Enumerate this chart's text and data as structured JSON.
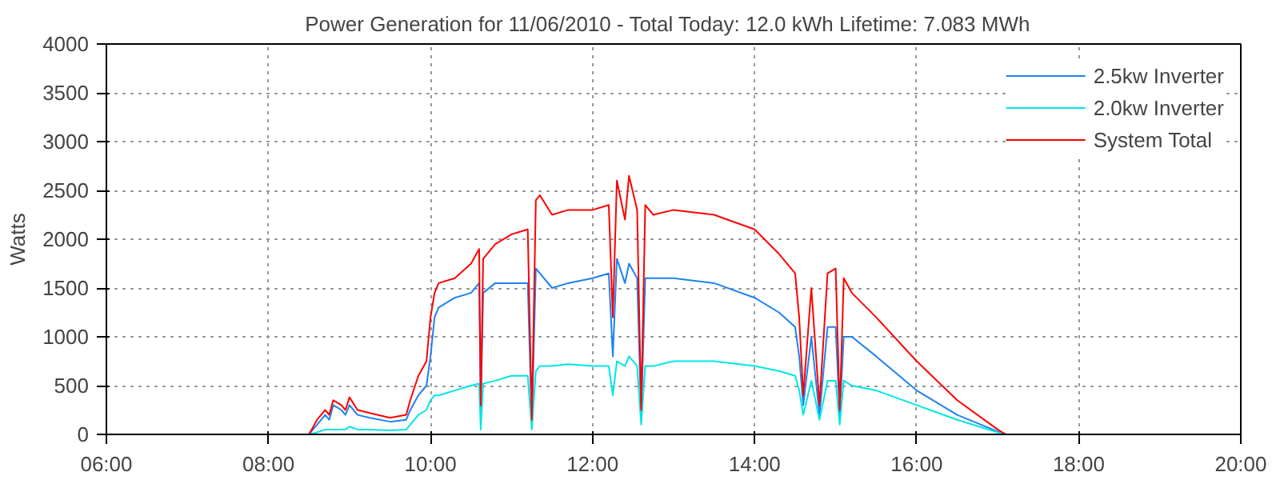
{
  "chart_data": {
    "type": "line",
    "title": "Power Generation for 11/06/2010 - Total Today: 12.0 kWh   Lifetime: 7.083 MWh",
    "ylabel": "Watts",
    "x": [
      8.5,
      8.6,
      8.7,
      8.75,
      8.8,
      8.9,
      8.95,
      9.0,
      9.1,
      9.25,
      9.5,
      9.7,
      9.75,
      9.85,
      9.95,
      10.0,
      10.05,
      10.1,
      10.3,
      10.5,
      10.6,
      10.62,
      10.65,
      10.8,
      11.0,
      11.2,
      11.25,
      11.3,
      11.35,
      11.5,
      11.7,
      12.0,
      12.2,
      12.25,
      12.3,
      12.4,
      12.45,
      12.55,
      12.6,
      12.65,
      12.75,
      13.0,
      13.5,
      14.0,
      14.3,
      14.5,
      14.55,
      14.6,
      14.7,
      14.8,
      14.9,
      15.0,
      15.05,
      15.1,
      15.2,
      15.5,
      16.0,
      16.5,
      17.0,
      17.1,
      17.3
    ],
    "series": [
      {
        "name": "2.5kw Inverter",
        "color": "#1e82f0",
        "values": [
          0,
          100,
          200,
          150,
          300,
          250,
          200,
          300,
          200,
          170,
          130,
          150,
          250,
          400,
          500,
          800,
          1200,
          1300,
          1400,
          1450,
          1550,
          250,
          1450,
          1550,
          1550,
          1550,
          100,
          1700,
          1650,
          1500,
          1550,
          1600,
          1650,
          800,
          1800,
          1550,
          1750,
          1600,
          200,
          1600,
          1600,
          1600,
          1550,
          1400,
          1250,
          1100,
          800,
          300,
          1000,
          200,
          1100,
          1100,
          200,
          1000,
          1000,
          800,
          450,
          200,
          30,
          0,
          0
        ]
      },
      {
        "name": "2.0kw Inverter",
        "color": "#00e5e5",
        "values": [
          0,
          20,
          50,
          50,
          50,
          50,
          50,
          80,
          50,
          50,
          40,
          50,
          100,
          200,
          250,
          350,
          400,
          400,
          450,
          500,
          520,
          50,
          520,
          550,
          600,
          600,
          50,
          650,
          700,
          700,
          720,
          700,
          700,
          400,
          750,
          700,
          800,
          700,
          100,
          700,
          700,
          750,
          750,
          700,
          650,
          600,
          450,
          200,
          550,
          150,
          550,
          550,
          100,
          550,
          500,
          450,
          300,
          150,
          20,
          0,
          0
        ]
      },
      {
        "name": "System Total",
        "color": "#ff0000",
        "values": [
          0,
          150,
          250,
          200,
          350,
          300,
          250,
          380,
          250,
          220,
          170,
          200,
          350,
          600,
          750,
          1200,
          1450,
          1550,
          1600,
          1750,
          1900,
          300,
          1800,
          1950,
          2050,
          2100,
          150,
          2400,
          2450,
          2250,
          2300,
          2300,
          2350,
          1200,
          2600,
          2200,
          2650,
          2300,
          250,
          2350,
          2250,
          2300,
          2250,
          2100,
          1850,
          1650,
          1200,
          400,
          1500,
          300,
          1650,
          1700,
          250,
          1600,
          1450,
          1200,
          750,
          350,
          50,
          0,
          0
        ]
      }
    ],
    "xlim": [
      6,
      20
    ],
    "xticks": [
      {
        "value": 6,
        "label": "06:00"
      },
      {
        "value": 8,
        "label": "08:00"
      },
      {
        "value": 10,
        "label": "10:00"
      },
      {
        "value": 12,
        "label": "12:00"
      },
      {
        "value": 14,
        "label": "14:00"
      },
      {
        "value": 16,
        "label": "16:00"
      },
      {
        "value": 18,
        "label": "18:00"
      },
      {
        "value": 20,
        "label": "20:00"
      }
    ],
    "ylim": [
      0,
      4000
    ],
    "yticks": [
      0,
      500,
      1000,
      1500,
      2000,
      2500,
      3000,
      3500,
      4000
    ],
    "grid": true,
    "legend": "top right",
    "marker": "none",
    "line_style": "solid"
  }
}
